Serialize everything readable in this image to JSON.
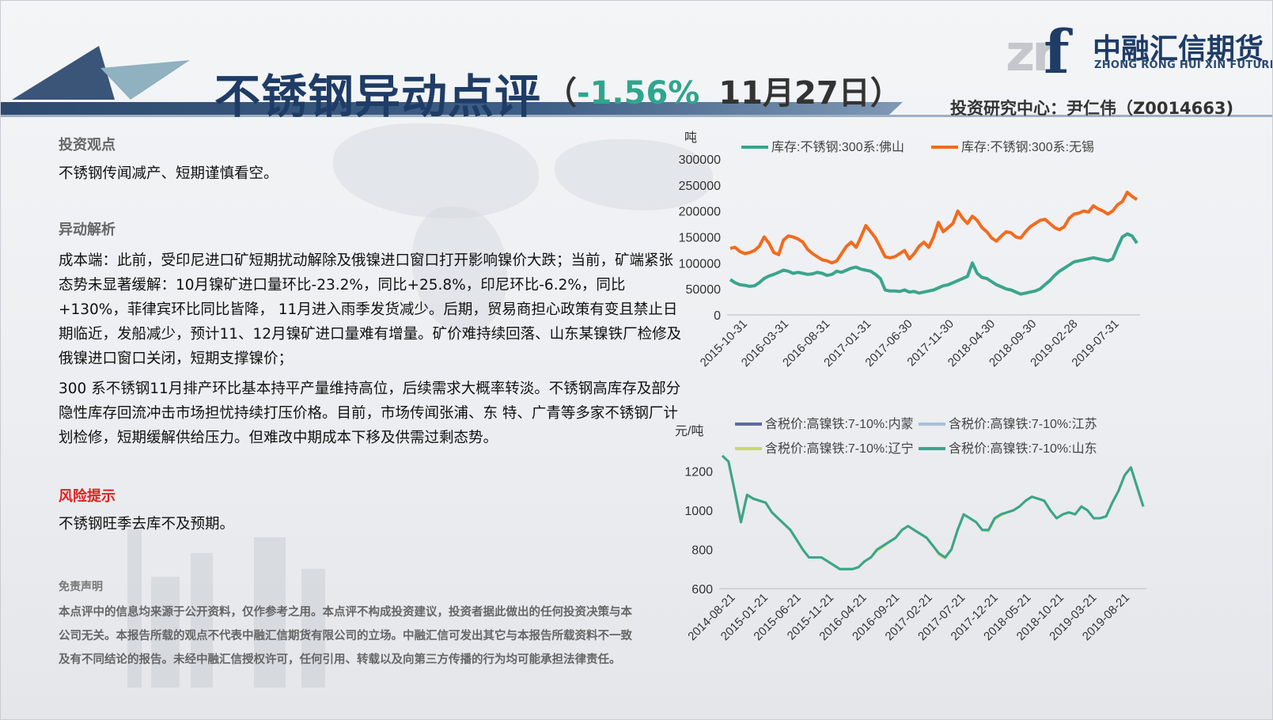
{
  "header": {
    "title": "不锈钢异动点评",
    "paren_open": "（",
    "change": "-1.56%",
    "date": "11月27日",
    "paren_close": "）",
    "author_line": "投资研究中心：尹仁伟（Z0014663)"
  },
  "logo": {
    "mark_letters": "zr",
    "mark_f": "f",
    "name_cn": "中融汇信期货",
    "name_en": "ZHONG RONG HUI XIN FUTURES"
  },
  "sections": {
    "view_head": "投资观点",
    "view_text": "不锈钢传闻减产、短期谨慎看空。",
    "analysis_head": "异动解析",
    "analysis_p1": "成本端：此前，受印尼进口矿短期扰动解除及俄镍进口窗口打开影响镍价大跌；当前，矿端紧张态势未显著缓解：10月镍矿进口量环比-23.2%，同比+25.8%，印尼环比-6.2%，同比+130%，菲律宾环比同比皆降， 11月进入雨季发货减少。后期，贸易商担心政策有变且禁止日期临近，发船减少，预计11、12月镍矿进口量难有增量。矿价难持续回落、山东某镍铁厂检修及俄镍进口窗口关闭，短期支撑镍价；",
    "analysis_p2": "300 系不锈钢11月排产环比基本持平产量维持高位，后续需求大概率转淡。不锈钢高库存及部分隐性库存回流冲击市场担忧持续打压价格。目前，市场传闻张浦、东 特、广青等多家不锈钢厂计划检修，短期缓解供给压力。但难改中期成本下移及供需过剩态势。",
    "risk_head": "风险提示",
    "risk_text": "不锈钢旺季去库不及预期。",
    "disclaimer_head": "免责声明",
    "disclaimer_text": "本点评中的信息均来源于公开资料，仅作参考之用。本点评不构成投资建议，投资者据此做出的任何投资决策与本公司无关。本报告所载的观点不代表中融汇信期货有限公司的立场。中融汇信可发出其它与本报告所载资料不一致及有不同结论的报告。未经中融汇信授权许可，任何引用、转载以及向第三方传播的行为均可能承担法律责任。"
  },
  "colors": {
    "title_navy": "#1e3c66",
    "change_green": "#2fa58e",
    "risk_red": "#e02020"
  },
  "chart_data": [
    {
      "type": "line",
      "ylabel": "吨",
      "ylim": [
        0,
        300000
      ],
      "yticks": [
        "300000",
        "250000",
        "200000",
        "150000",
        "100000",
        "50000",
        "0"
      ],
      "xticks": [
        "2015-10-31",
        "2016-03-31",
        "2016-08-31",
        "2017-01-31",
        "2017-06-30",
        "2017-11-30",
        "2018-04-30",
        "2018-09-30",
        "2019-02-28",
        "2019-07-31"
      ],
      "legend_position": "top",
      "series": [
        {
          "name": "库存:不锈钢:300系:佛山",
          "color": "#3aa58c",
          "values": [
            68000,
            62000,
            58000,
            57000,
            55000,
            56000,
            62000,
            70000,
            75000,
            78000,
            82000,
            86000,
            84000,
            80000,
            82000,
            80000,
            78000,
            79000,
            82000,
            80000,
            76000,
            78000,
            84000,
            82000,
            86000,
            90000,
            92000,
            88000,
            86000,
            84000,
            78000,
            70000,
            48000,
            46000,
            46000,
            45000,
            48000,
            44000,
            45000,
            42000,
            44000,
            46000,
            48000,
            52000,
            56000,
            58000,
            62000,
            66000,
            70000,
            74000,
            100000,
            80000,
            72000,
            70000,
            64000,
            58000,
            54000,
            50000,
            48000,
            44000,
            40000,
            42000,
            44000,
            46000,
            50000,
            58000,
            66000,
            76000,
            84000,
            90000,
            96000,
            102000,
            104000,
            106000,
            108000,
            110000,
            108000,
            106000,
            104000,
            108000,
            130000,
            150000,
            156000,
            152000,
            138000
          ]
        },
        {
          "name": "库存:不锈钢:300系:无锡",
          "color": "#f26b1d",
          "values": [
            128000,
            130000,
            122000,
            118000,
            120000,
            124000,
            132000,
            150000,
            138000,
            120000,
            116000,
            144000,
            152000,
            150000,
            146000,
            140000,
            126000,
            118000,
            112000,
            106000,
            104000,
            100000,
            104000,
            118000,
            132000,
            140000,
            130000,
            150000,
            172000,
            160000,
            148000,
            130000,
            112000,
            110000,
            112000,
            118000,
            124000,
            108000,
            118000,
            132000,
            140000,
            130000,
            150000,
            178000,
            160000,
            168000,
            176000,
            200000,
            186000,
            176000,
            190000,
            182000,
            168000,
            160000,
            148000,
            142000,
            152000,
            160000,
            158000,
            150000,
            148000,
            160000,
            170000,
            176000,
            182000,
            184000,
            176000,
            168000,
            164000,
            170000,
            186000,
            194000,
            196000,
            200000,
            198000,
            210000,
            204000,
            200000,
            194000,
            200000,
            212000,
            218000,
            236000,
            228000,
            222000
          ]
        }
      ]
    },
    {
      "type": "line",
      "ylabel": "元/吨",
      "ylim": [
        600,
        1300
      ],
      "yticks": [
        "1200",
        "1000",
        "800",
        "600"
      ],
      "xticks": [
        "2014-08-21",
        "2015-01-21",
        "2015-06-21",
        "2015-11-21",
        "2016-04-21",
        "2016-09-21",
        "2017-02-21",
        "2017-07-21",
        "2017-12-21",
        "2018-05-21",
        "2018-10-21",
        "2019-03-21",
        "2019-08-21"
      ],
      "legend_position": "top",
      "series": [
        {
          "name": "含税价:高镍铁:7-10%:内蒙",
          "color": "#5a6d9a",
          "values": [
            1280,
            1250,
            1100,
            940,
            1080,
            1060,
            1050,
            1040,
            990,
            960,
            930,
            900,
            850,
            800,
            760,
            760,
            760,
            740,
            720,
            700,
            700,
            700,
            710,
            740,
            760,
            800,
            820,
            840,
            860,
            900,
            920,
            900,
            880,
            860,
            820,
            780,
            760,
            800,
            900,
            980,
            960,
            940,
            900,
            900,
            960,
            980,
            990,
            1000,
            1020,
            1050,
            1070,
            1060,
            1050,
            1000,
            960,
            980,
            990,
            980,
            1020,
            1000,
            960,
            960,
            970,
            1040,
            1100,
            1180,
            1220,
            1120,
            1020
          ]
        },
        {
          "name": "含税价:高镍铁:7-10%:江苏",
          "color": "#a9bfd9",
          "values": [
            1280,
            1250,
            1100,
            945,
            1080,
            1060,
            1050,
            1040,
            990,
            960,
            930,
            900,
            850,
            800,
            760,
            760,
            760,
            740,
            720,
            700,
            700,
            700,
            710,
            740,
            760,
            800,
            820,
            840,
            860,
            900,
            920,
            900,
            880,
            860,
            820,
            780,
            760,
            800,
            900,
            980,
            960,
            940,
            900,
            900,
            960,
            980,
            990,
            1000,
            1020,
            1050,
            1070,
            1060,
            1050,
            1000,
            960,
            980,
            990,
            980,
            1020,
            1000,
            960,
            960,
            970,
            1040,
            1100,
            1180,
            1220,
            1120,
            1020
          ]
        },
        {
          "name": "含税价:高镍铁:7-10%:辽宁",
          "color": "#c9d96a",
          "values": [
            1280,
            1250,
            1100,
            940,
            1075,
            1060,
            1050,
            1040,
            990,
            960,
            930,
            900,
            850,
            800,
            760,
            760,
            760,
            740,
            720,
            700,
            700,
            700,
            710,
            740,
            760,
            795,
            815,
            840,
            860,
            900,
            920,
            900,
            880,
            860,
            820,
            775,
            755,
            800,
            900,
            980,
            960,
            940,
            900,
            895,
            955,
            975,
            990,
            1000,
            1020,
            1050,
            1070,
            1060,
            1050,
            1000,
            960,
            980,
            990,
            980,
            1020,
            1000,
            960,
            960,
            970,
            1040,
            1100,
            1180,
            1220,
            1120,
            1020
          ]
        },
        {
          "name": "含税价:高镍铁:7-10%:山东",
          "color": "#3aa58c",
          "values": [
            1280,
            1250,
            1100,
            940,
            1080,
            1060,
            1050,
            1040,
            990,
            960,
            930,
            900,
            850,
            800,
            760,
            760,
            760,
            740,
            720,
            700,
            700,
            700,
            710,
            740,
            760,
            800,
            820,
            840,
            860,
            900,
            920,
            900,
            880,
            860,
            820,
            780,
            760,
            800,
            900,
            980,
            960,
            940,
            900,
            900,
            960,
            980,
            990,
            1000,
            1020,
            1050,
            1070,
            1060,
            1050,
            1000,
            960,
            980,
            990,
            980,
            1020,
            1000,
            960,
            960,
            970,
            1040,
            1100,
            1180,
            1220,
            1120,
            1020
          ]
        }
      ]
    }
  ]
}
